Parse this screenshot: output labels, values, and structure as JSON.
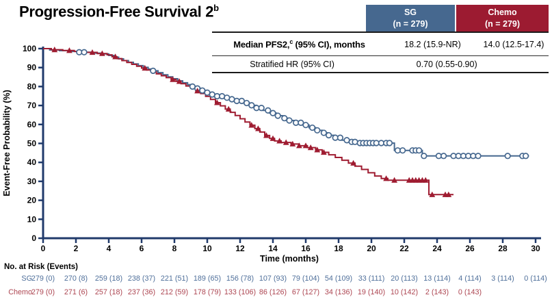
{
  "title": {
    "text": "Progression-Free Survival 2",
    "superscript": "b"
  },
  "legend_header": {
    "sg": {
      "line1": "SG",
      "line2": "(n = 279)",
      "color": "#46688f"
    },
    "chemo": {
      "line1": "Chemo",
      "line2": "(n = 279)",
      "color": "#9c1b31"
    }
  },
  "stats_table": {
    "row1": {
      "label_prefix": "Median PFS2,",
      "label_sup": "c",
      "label_suffix": " (95% CI), months",
      "sg_value": "18.2 (15.9-NR)",
      "chemo_value": "14.0 (12.5-17.4)"
    },
    "row2": {
      "label": "Stratified HR (95% CI)",
      "combined_value": "0.70 (0.55-0.90)"
    }
  },
  "chart_data": {
    "type": "line",
    "subtype": "kaplan-meier-step",
    "xlabel": "Time (months)",
    "ylabel": "Event-Free Probability (%)",
    "xlim": [
      0,
      30
    ],
    "ylim": [
      0,
      100
    ],
    "xticks": [
      0,
      2,
      4,
      6,
      8,
      10,
      12,
      14,
      16,
      18,
      20,
      22,
      24,
      26,
      28,
      30
    ],
    "yticks": [
      0,
      10,
      20,
      30,
      40,
      50,
      60,
      70,
      80,
      90,
      100
    ],
    "grid": false,
    "axis_color": "#203a6b",
    "series": [
      {
        "name": "SG",
        "color": "#46688f",
        "marker": "open-circle",
        "steps": [
          [
            0,
            100
          ],
          [
            0.4,
            99.3
          ],
          [
            1.0,
            98.9
          ],
          [
            1.6,
            98.5
          ],
          [
            2.2,
            98.1
          ],
          [
            2.9,
            97.6
          ],
          [
            3.5,
            97.2
          ],
          [
            4.0,
            96.4
          ],
          [
            4.3,
            95.5
          ],
          [
            4.6,
            94.6
          ],
          [
            4.9,
            93.7
          ],
          [
            5.2,
            92.8
          ],
          [
            5.5,
            91.9
          ],
          [
            5.8,
            91.0
          ],
          [
            6.1,
            90.1
          ],
          [
            6.4,
            89.2
          ],
          [
            6.7,
            88.3
          ],
          [
            7.0,
            87.3
          ],
          [
            7.3,
            86.2
          ],
          [
            7.6,
            85.1
          ],
          [
            7.9,
            84.1
          ],
          [
            8.2,
            83.0
          ],
          [
            8.5,
            82.0
          ],
          [
            8.8,
            81.0
          ],
          [
            9.1,
            80.0
          ],
          [
            9.4,
            79.0
          ],
          [
            9.7,
            77.9
          ],
          [
            10.0,
            76.8
          ],
          [
            10.3,
            75.8
          ],
          [
            10.6,
            74.9
          ],
          [
            11.0,
            74.1
          ],
          [
            11.4,
            73.3
          ],
          [
            11.8,
            72.4
          ],
          [
            12.2,
            71.3
          ],
          [
            12.6,
            70.1
          ],
          [
            13.0,
            68.7
          ],
          [
            13.4,
            67.4
          ],
          [
            13.8,
            66.0
          ],
          [
            14.2,
            64.6
          ],
          [
            14.6,
            63.3
          ],
          [
            15.0,
            62.1
          ],
          [
            15.4,
            60.9
          ],
          [
            15.8,
            59.7
          ],
          [
            16.2,
            58.3
          ],
          [
            16.6,
            56.9
          ],
          [
            17.0,
            55.6
          ],
          [
            17.4,
            54.3
          ],
          [
            17.8,
            53.0
          ],
          [
            18.2,
            51.7
          ],
          [
            18.6,
            50.8
          ],
          [
            19.3,
            50.2
          ],
          [
            21.4,
            46.3
          ],
          [
            23.1,
            43.4
          ],
          [
            29.6,
            43.4
          ]
        ],
        "censor_times": [
          2.2,
          2.5,
          6.7,
          9.1,
          9.4,
          9.7,
          10.0,
          10.3,
          10.6,
          10.9,
          11.2,
          11.5,
          11.8,
          12.1,
          12.4,
          12.7,
          13.0,
          13.3,
          13.7,
          14.0,
          14.3,
          14.7,
          15.0,
          15.4,
          15.7,
          16.0,
          16.4,
          16.7,
          17.1,
          17.4,
          17.8,
          18.1,
          18.5,
          18.8,
          19.0,
          19.3,
          19.5,
          19.7,
          19.9,
          20.1,
          20.3,
          20.6,
          20.9,
          21.1,
          21.6,
          21.9,
          22.5,
          22.7,
          22.9,
          23.2,
          24.1,
          24.4,
          25.0,
          25.3,
          25.6,
          25.9,
          26.2,
          26.5,
          28.3,
          29.2,
          29.4
        ]
      },
      {
        "name": "Chemo",
        "color": "#9f1c31",
        "marker": "filled-triangle",
        "steps": [
          [
            0,
            100
          ],
          [
            0.5,
            99.4
          ],
          [
            1.2,
            99.0
          ],
          [
            1.9,
            98.5
          ],
          [
            2.6,
            98.0
          ],
          [
            3.3,
            97.4
          ],
          [
            3.9,
            96.7
          ],
          [
            4.2,
            95.7
          ],
          [
            4.5,
            94.7
          ],
          [
            4.8,
            93.7
          ],
          [
            5.1,
            92.7
          ],
          [
            5.4,
            91.7
          ],
          [
            5.7,
            90.7
          ],
          [
            6.0,
            89.7
          ],
          [
            6.3,
            88.7
          ],
          [
            6.6,
            87.7
          ],
          [
            6.9,
            86.7
          ],
          [
            7.2,
            85.7
          ],
          [
            7.5,
            84.7
          ],
          [
            7.8,
            83.7
          ],
          [
            8.1,
            82.7
          ],
          [
            8.4,
            81.5
          ],
          [
            8.7,
            80.3
          ],
          [
            9.0,
            79.1
          ],
          [
            9.3,
            77.7
          ],
          [
            9.6,
            76.3
          ],
          [
            9.9,
            74.8
          ],
          [
            10.2,
            73.2
          ],
          [
            10.5,
            71.5
          ],
          [
            10.8,
            69.8
          ],
          [
            11.1,
            68.1
          ],
          [
            11.4,
            66.4
          ],
          [
            11.7,
            64.7
          ],
          [
            12.0,
            63.0
          ],
          [
            12.3,
            61.3
          ],
          [
            12.6,
            59.6
          ],
          [
            12.9,
            57.8
          ],
          [
            13.2,
            56.0
          ],
          [
            13.5,
            54.2
          ],
          [
            13.8,
            52.6
          ],
          [
            14.1,
            51.3
          ],
          [
            14.5,
            50.5
          ],
          [
            15.1,
            49.7
          ],
          [
            15.6,
            48.8
          ],
          [
            16.1,
            47.8
          ],
          [
            16.6,
            46.6
          ],
          [
            17.0,
            45.3
          ],
          [
            17.4,
            44.0
          ],
          [
            17.8,
            42.6
          ],
          [
            18.2,
            41.1
          ],
          [
            18.6,
            39.6
          ],
          [
            19.0,
            38.0
          ],
          [
            19.4,
            36.3
          ],
          [
            19.8,
            34.5
          ],
          [
            20.2,
            32.8
          ],
          [
            20.6,
            31.5
          ],
          [
            21.0,
            30.6
          ],
          [
            23.5,
            23.0
          ],
          [
            25.0,
            23.0
          ]
        ],
        "censor_times": [
          0.7,
          1.6,
          3.0,
          3.6,
          4.4,
          6.2,
          7.9,
          8.3,
          9.4,
          10.6,
          11.3,
          12.7,
          13.1,
          13.6,
          14.0,
          14.4,
          14.8,
          15.2,
          15.6,
          16.0,
          16.3,
          16.7,
          17.1,
          18.9,
          20.9,
          21.4,
          22.3,
          22.5,
          22.7,
          22.9,
          23.1,
          23.3,
          23.7,
          24.5,
          24.7
        ]
      }
    ]
  },
  "risk_table": {
    "title": "No. at Risk (Events)",
    "time_interval": 2,
    "rows": [
      {
        "label": "SG",
        "color": "#4f6f9a",
        "values": [
          "279 (0)",
          "270 (8)",
          "259 (18)",
          "238 (37)",
          "221 (51)",
          "189 (65)",
          "156 (78)",
          "107 (93)",
          "79 (104)",
          "54 (109)",
          "33 (111)",
          "20 (113)",
          "13 (114)",
          "4 (114)",
          "3 (114)",
          "0 (114)"
        ]
      },
      {
        "label": "Chemo",
        "color": "#ad4652",
        "values": [
          "279 (0)",
          "271 (6)",
          "257 (18)",
          "237 (36)",
          "212 (59)",
          "178 (79)",
          "133 (106)",
          "86 (126)",
          "67 (127)",
          "34 (136)",
          "19 (140)",
          "10 (142)",
          "2 (143)",
          "0 (143)"
        ]
      }
    ]
  }
}
